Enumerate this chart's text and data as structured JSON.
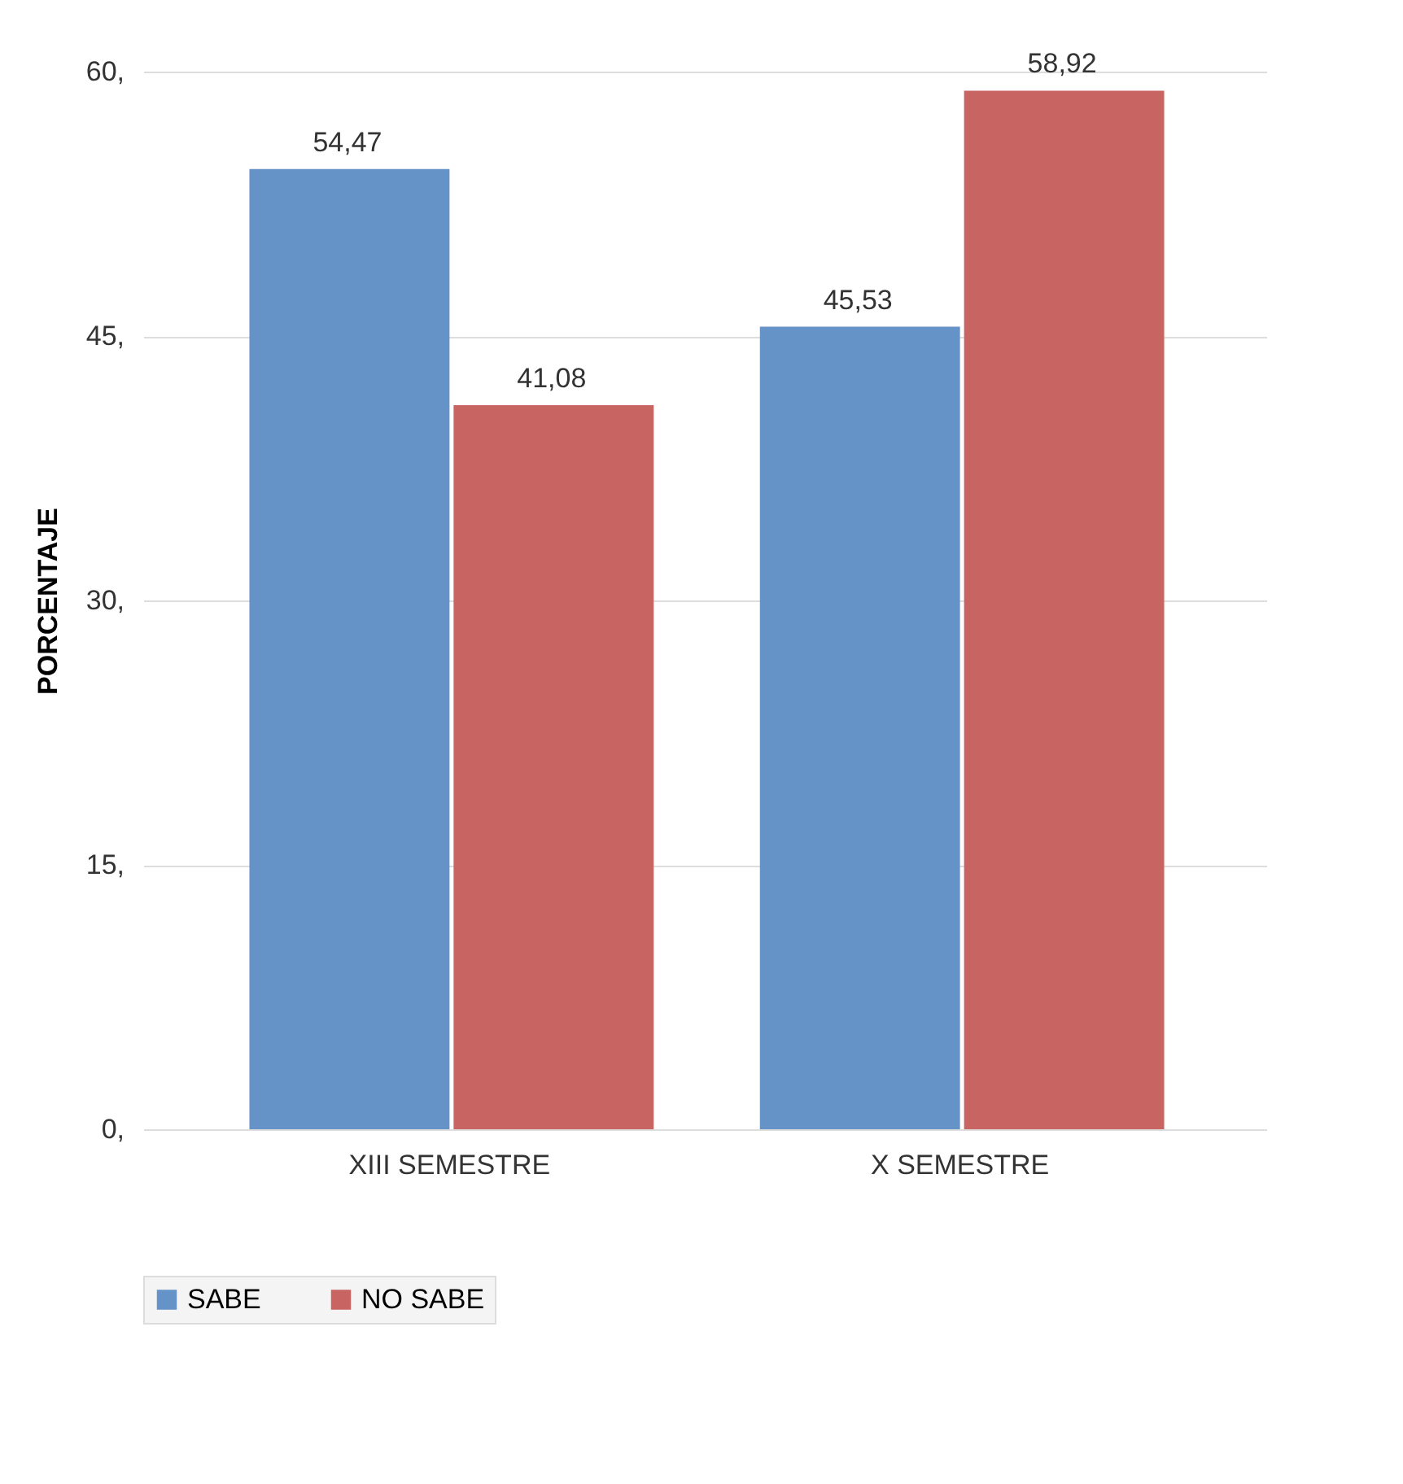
{
  "chart_data": {
    "type": "bar",
    "ylabel": "PORCENTAJE",
    "categories": [
      "XIII  SEMESTRE",
      "X SEMESTRE"
    ],
    "series": [
      {
        "name": "SABE",
        "color": "#6592c7",
        "values": [
          54.47,
          45.53
        ],
        "value_labels": [
          "54,47",
          "45,53"
        ]
      },
      {
        "name": "NO SABE",
        "color": "#c86462",
        "values": [
          41.08,
          58.92
        ],
        "value_labels": [
          "41,08",
          "58,92"
        ]
      }
    ],
    "ylim": [
      0,
      60
    ],
    "yticks": [
      {
        "value": 0,
        "label": "0,"
      },
      {
        "value": 15,
        "label": "15,"
      },
      {
        "value": 30,
        "label": "30,"
      },
      {
        "value": 45,
        "label": "45,"
      },
      {
        "value": 60,
        "label": "60,"
      }
    ],
    "grid": "y",
    "legend": "bottom"
  }
}
